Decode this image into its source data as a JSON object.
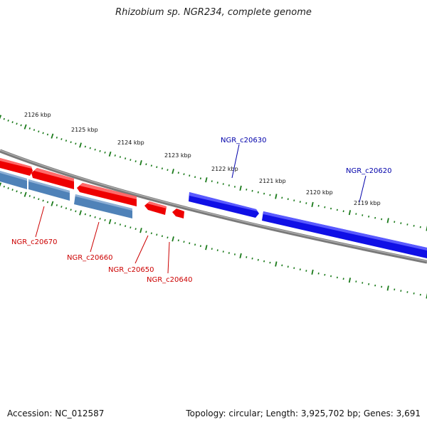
{
  "title": "Rhizobium sp. NGR234, complete genome",
  "footer": {
    "accession": "Accession: NC_012587",
    "summary": "Topology: circular; Length: 3,925,702 bp; Genes: 3,691"
  },
  "colors": {
    "backbone": "#7a7a7a",
    "tick": "#1a7a1a",
    "forward_gene": "#1010e6",
    "reverse_gene": "#ee0000",
    "reverse_cds": "#4f82b8",
    "forward_label": "#0000aa",
    "reverse_label": "#cc0000"
  },
  "scale_labels": [
    "2126 kbp",
    "2125 kbp",
    "2124 kbp",
    "2123 kbp",
    "2122 kbp",
    "2121 kbp",
    "2120 kbp",
    "2119 kbp"
  ],
  "genes": {
    "forward": [
      "NGR_c20630",
      "NGR_c20620"
    ],
    "reverse": [
      "NGR_c20670",
      "NGR_c20660",
      "NGR_c20650",
      "NGR_c20640"
    ]
  }
}
